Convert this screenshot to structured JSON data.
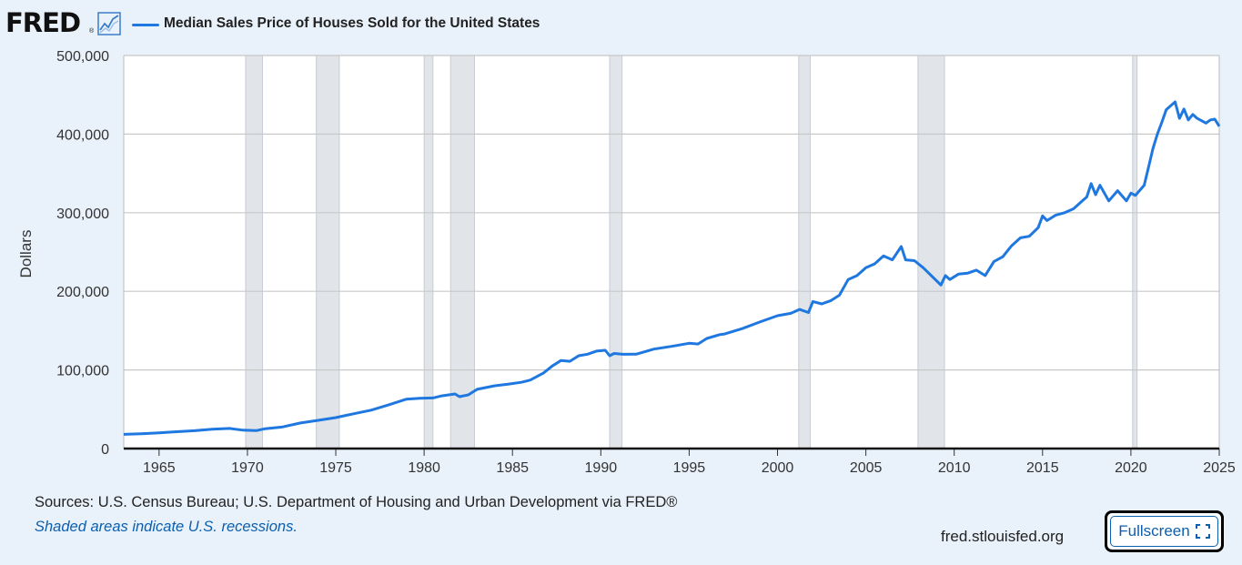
{
  "header": {
    "logo_text": "FRED",
    "logo_reg": "®",
    "logo_icon": "line-chart-icon",
    "series_title": "Median Sales Price of Houses Sold for the United States"
  },
  "footer": {
    "sources": "Sources: U.S. Census Bureau; U.S. Department of Housing and Urban Development via FRED®",
    "recession_note": "Shaded areas indicate U.S. recessions.",
    "site": "fred.stlouisfed.org",
    "fullscreen_label": "Fullscreen",
    "fullscreen_icon": "expand-icon"
  },
  "colors": {
    "series": "#1f77e0",
    "recession": "#e1e5ea",
    "grid": "#c8c8c8",
    "background": "#e9f1fa",
    "plot": "#ffffff"
  },
  "chart_data": {
    "type": "line",
    "title": "Median Sales Price of Houses Sold for the United States",
    "xlabel": "",
    "ylabel": "Dollars",
    "xlim": [
      1963.0,
      2025.0
    ],
    "ylim": [
      0,
      500000
    ],
    "yticks": [
      0,
      100000,
      200000,
      300000,
      400000,
      500000
    ],
    "ytick_labels": [
      "0",
      "100,000",
      "200,000",
      "300,000",
      "400,000",
      "500,000"
    ],
    "xticks": [
      1965,
      1970,
      1975,
      1980,
      1985,
      1990,
      1995,
      2000,
      2005,
      2010,
      2015,
      2020,
      2025
    ],
    "xtick_labels": [
      "1965",
      "1970",
      "1975",
      "1980",
      "1985",
      "1990",
      "1995",
      "2000",
      "2005",
      "2010",
      "2015",
      "2020",
      "2025"
    ],
    "grid": true,
    "recessions": [
      [
        1969.9,
        1970.85
      ],
      [
        1973.9,
        1975.2
      ],
      [
        1980.0,
        1980.5
      ],
      [
        1981.5,
        1982.85
      ],
      [
        1990.5,
        1991.2
      ],
      [
        2001.2,
        2001.85
      ],
      [
        2007.95,
        2009.45
      ],
      [
        2020.1,
        2020.35
      ]
    ],
    "series": [
      {
        "name": "Median Sales Price of Houses Sold for the United States",
        "x": [
          1963.0,
          1964.0,
          1965.0,
          1966.0,
          1967.0,
          1968.0,
          1969.0,
          1969.75,
          1970.5,
          1971.0,
          1972.0,
          1973.0,
          1974.0,
          1975.0,
          1976.0,
          1977.0,
          1978.0,
          1979.0,
          1979.75,
          1980.5,
          1981.0,
          1981.75,
          1982.0,
          1982.5,
          1983.0,
          1984.0,
          1984.75,
          1985.5,
          1986.0,
          1986.75,
          1987.25,
          1987.75,
          1988.25,
          1988.75,
          1989.25,
          1989.75,
          1990.25,
          1990.5,
          1990.75,
          1991.25,
          1992.0,
          1993.0,
          1994.0,
          1995.0,
          1995.5,
          1996.0,
          1996.75,
          1997.0,
          1998.0,
          1999.0,
          2000.0,
          2000.75,
          2001.25,
          2001.75,
          2002.0,
          2002.5,
          2003.0,
          2003.5,
          2004.0,
          2004.5,
          2005.0,
          2005.5,
          2006.0,
          2006.5,
          2007.0,
          2007.25,
          2007.75,
          2008.25,
          2008.75,
          2009.25,
          2009.5,
          2009.75,
          2010.25,
          2010.75,
          2011.25,
          2011.75,
          2012.25,
          2012.75,
          2013.25,
          2013.75,
          2014.25,
          2014.75,
          2015.0,
          2015.25,
          2015.75,
          2016.25,
          2016.75,
          2017.25,
          2017.5,
          2017.75,
          2018.0,
          2018.25,
          2018.75,
          2019.25,
          2019.75,
          2020.0,
          2020.25,
          2020.75,
          2021.0,
          2021.25,
          2021.5,
          2021.75,
          2022.0,
          2022.25,
          2022.5,
          2022.75,
          2023.0,
          2023.25,
          2023.5,
          2023.75,
          2024.0,
          2024.25,
          2024.5,
          2024.75,
          2025.0
        ],
        "values": [
          18000,
          18900,
          20000,
          21400,
          22700,
          24700,
          25600,
          23400,
          22800,
          25200,
          27600,
          32500,
          35900,
          39300,
          44200,
          48800,
          55700,
          62900,
          64000,
          64300,
          67000,
          69500,
          66000,
          68300,
          75300,
          79900,
          82000,
          84300,
          87000,
          96000,
          105000,
          112000,
          111000,
          118000,
          120000,
          124000,
          125000,
          118000,
          121000,
          119900,
          120000,
          126500,
          130000,
          133900,
          133000,
          140000,
          145000,
          145700,
          152500,
          161000,
          169000,
          172000,
          177000,
          173000,
          187000,
          184000,
          188000,
          195000,
          215000,
          220000,
          230000,
          235000,
          245000,
          240000,
          257000,
          240000,
          239000,
          230000,
          219000,
          208000,
          220000,
          215000,
          222000,
          223000,
          227000,
          220000,
          238000,
          244000,
          258000,
          268000,
          270000,
          281000,
          296000,
          290000,
          297000,
          300000,
          305000,
          315000,
          320000,
          337000,
          323000,
          335000,
          315000,
          328000,
          315000,
          325000,
          322000,
          335000,
          358000,
          382000,
          400000,
          415000,
          431000,
          436000,
          441000,
          420000,
          432000,
          418000,
          425000,
          420000,
          417000,
          414000,
          418000,
          419000,
          410000
        ]
      }
    ]
  }
}
